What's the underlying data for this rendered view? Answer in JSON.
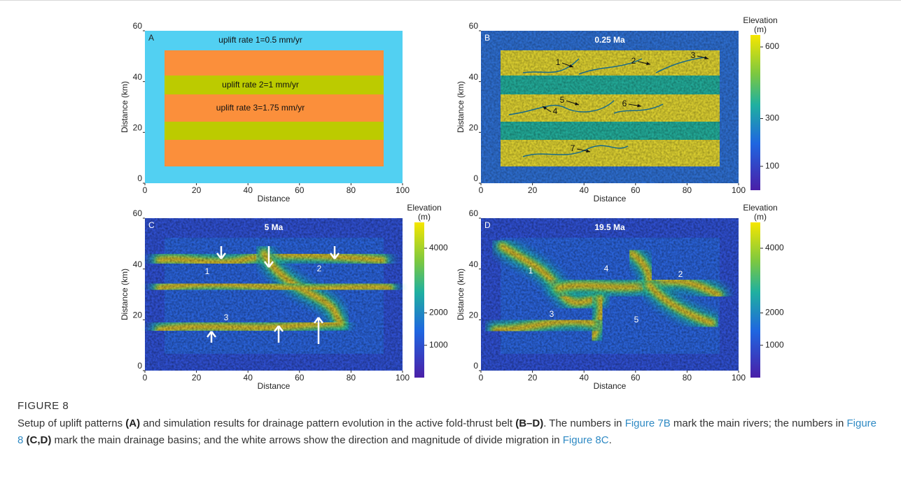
{
  "figure": {
    "panels": [
      {
        "letter": "A",
        "xlabel": "Distance",
        "ylabel": "Distance (km)",
        "xlim": [
          0,
          100
        ],
        "ylim": [
          0,
          60
        ],
        "xticks": [
          0,
          20,
          40,
          60,
          80,
          100
        ],
        "yticks": [
          0,
          20,
          40,
          60
        ],
        "annotations": [
          "uplift rate 1=0.5 mm/yr",
          "uplift rate 2=1 mm/yr",
          "uplift rate 3=1.75 mm/yr"
        ]
      },
      {
        "letter": "B",
        "time": "0.25 Ma",
        "xlabel": "Distance",
        "ylabel": "Distance (km)",
        "xlim": [
          0,
          100
        ],
        "ylim": [
          0,
          60
        ],
        "xticks": [
          0,
          20,
          40,
          60,
          80,
          100
        ],
        "yticks": [
          0,
          20,
          40,
          60
        ],
        "colorbar": {
          "title": [
            "Elevation",
            "(m)"
          ],
          "lim": [
            0,
            650
          ],
          "ticks": [
            100,
            300,
            600
          ]
        },
        "markers": [
          "1",
          "2",
          "3",
          "4",
          "5",
          "6",
          "7"
        ]
      },
      {
        "letter": "C",
        "time": "5 Ma",
        "xlabel": "Distance",
        "ylabel": "Distance (km)",
        "xlim": [
          0,
          100
        ],
        "ylim": [
          0,
          60
        ],
        "xticks": [
          0,
          20,
          40,
          60,
          80,
          100
        ],
        "yticks": [
          0,
          20,
          40,
          60
        ],
        "colorbar": {
          "title": [
            "Elevation",
            "(m)"
          ],
          "lim": [
            0,
            4800
          ],
          "ticks": [
            1000,
            2000,
            4000
          ]
        },
        "markers": [
          "1",
          "2",
          "3"
        ]
      },
      {
        "letter": "D",
        "time": "19.5 Ma",
        "xlabel": "Distance",
        "ylabel": "Distance (km)",
        "xlim": [
          0,
          100
        ],
        "ylim": [
          0,
          60
        ],
        "xticks": [
          0,
          20,
          40,
          60,
          80,
          100
        ],
        "yticks": [
          0,
          20,
          40,
          60
        ],
        "colorbar": {
          "title": [
            "Elevation",
            "(m)"
          ],
          "lim": [
            0,
            4800
          ],
          "ticks": [
            1000,
            2000,
            4000
          ]
        },
        "markers": [
          "1",
          "4",
          "2",
          "3",
          "5"
        ]
      }
    ],
    "label": "FIGURE 8",
    "caption": [
      "Setup of uplift patterns ",
      "(A)",
      " and simulation results for drainage pattern evolution in the active fold-thrust belt ",
      "(B–D)",
      ". The numbers in ",
      "Figure 7B",
      " mark the main rivers; the numbers in ",
      "Figure 8",
      " (C,D)",
      " mark the main drainage basins; and the white arrows show the direction and magnitude of divide migration in ",
      "Figure 8C",
      "."
    ]
  }
}
